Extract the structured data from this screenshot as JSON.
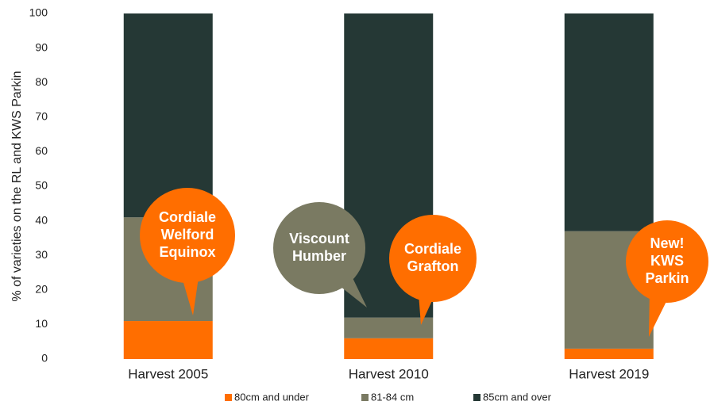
{
  "chart_data": {
    "type": "stacked_bar",
    "y_label": "% of varieties on the RL and KWS Parkin",
    "categories": [
      "Harvest 2005",
      "Harvest 2010",
      "Harvest 2019"
    ],
    "series": [
      {
        "name": "80cm and under",
        "color": "#ff6e00",
        "values": [
          11,
          6,
          3
        ]
      },
      {
        "name": "81-84 cm",
        "color": "#7a7a62",
        "values": [
          30,
          6,
          34
        ]
      },
      {
        "name": "85cm and over",
        "color": "#253835",
        "values": [
          59,
          88,
          63
        ]
      }
    ],
    "ylim": [
      0,
      100
    ],
    "yticks": [
      0,
      10,
      20,
      30,
      40,
      50,
      60,
      70,
      80,
      90,
      100
    ],
    "grid": false,
    "legend": "bottom",
    "annotations": [
      {
        "lines": [
          "Cordiale",
          "Welford",
          "Equinox"
        ],
        "color": "#ff6e00"
      },
      {
        "lines": [
          "Viscount",
          "Humber"
        ],
        "color": "#7a7a62"
      },
      {
        "lines": [
          "Cordiale",
          "Grafton"
        ],
        "color": "#ff6e00"
      },
      {
        "lines": [
          "New!",
          "KWS",
          "Parkin"
        ],
        "color": "#ff6e00"
      }
    ]
  }
}
